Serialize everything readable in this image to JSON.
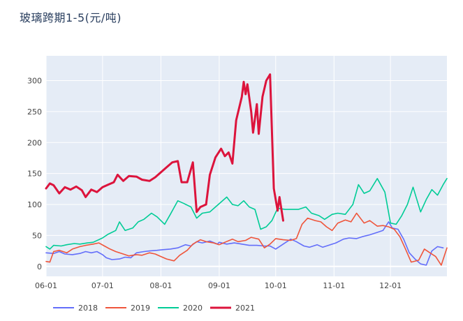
{
  "chart_data": {
    "type": "line",
    "title": "玻璃跨期1-5(元/吨)",
    "xlabel": "",
    "ylabel": "",
    "x_range": [
      "06-01",
      "12-31"
    ],
    "ylim": [
      -16,
      340
    ],
    "x_ticks": [
      "06-01",
      "07-01",
      "08-01",
      "09-01",
      "10-01",
      "11-01",
      "12-01"
    ],
    "y_ticks": [
      0,
      50,
      100,
      150,
      200,
      250,
      300
    ],
    "grid": true,
    "legend_position": "bottom-left",
    "series": [
      {
        "name": "2018",
        "color": "#636efa",
        "points": [
          [
            "06-01",
            22
          ],
          [
            "06-05",
            21
          ],
          [
            "06-08",
            24
          ],
          [
            "06-11",
            20
          ],
          [
            "06-15",
            19
          ],
          [
            "06-19",
            21
          ],
          [
            "06-22",
            24
          ],
          [
            "06-25",
            22
          ],
          [
            "06-28",
            24
          ],
          [
            "07-01",
            19
          ],
          [
            "07-03",
            14
          ],
          [
            "07-06",
            11
          ],
          [
            "07-10",
            12
          ],
          [
            "07-13",
            15
          ],
          [
            "07-16",
            14
          ],
          [
            "07-19",
            22
          ],
          [
            "07-23",
            24
          ],
          [
            "07-26",
            25
          ],
          [
            "07-30",
            26
          ],
          [
            "08-02",
            27
          ],
          [
            "08-06",
            28
          ],
          [
            "08-10",
            30
          ],
          [
            "08-14",
            35
          ],
          [
            "08-17",
            33
          ],
          [
            "08-20",
            40
          ],
          [
            "08-23",
            38
          ],
          [
            "08-27",
            41
          ],
          [
            "08-31",
            36
          ],
          [
            "09-01",
            39
          ],
          [
            "09-05",
            36
          ],
          [
            "09-09",
            38
          ],
          [
            "09-13",
            36
          ],
          [
            "09-17",
            34
          ],
          [
            "09-21",
            34
          ],
          [
            "09-25",
            33
          ],
          [
            "09-28",
            33
          ],
          [
            "10-01",
            28
          ],
          [
            "10-05",
            36
          ],
          [
            "10-09",
            44
          ],
          [
            "10-12",
            40
          ],
          [
            "10-16",
            33
          ],
          [
            "10-19",
            31
          ],
          [
            "10-23",
            35
          ],
          [
            "10-26",
            31
          ],
          [
            "10-30",
            35
          ],
          [
            "11-02",
            38
          ],
          [
            "11-06",
            44
          ],
          [
            "11-09",
            46
          ],
          [
            "11-13",
            45
          ],
          [
            "11-16",
            48
          ],
          [
            "11-20",
            51
          ],
          [
            "11-24",
            55
          ],
          [
            "11-27",
            58
          ],
          [
            "11-30",
            72
          ],
          [
            "12-02",
            62
          ],
          [
            "12-05",
            60
          ],
          [
            "12-08",
            44
          ],
          [
            "12-11",
            22
          ],
          [
            "12-14",
            12
          ],
          [
            "12-17",
            4
          ],
          [
            "12-20",
            2
          ],
          [
            "12-23",
            25
          ],
          [
            "12-26",
            32
          ],
          [
            "12-29",
            30
          ]
        ]
      },
      {
        "name": "2019",
        "color": "#ef553b",
        "points": [
          [
            "06-01",
            8
          ],
          [
            "06-03",
            7
          ],
          [
            "06-05",
            24
          ],
          [
            "06-08",
            26
          ],
          [
            "06-12",
            22
          ],
          [
            "06-15",
            28
          ],
          [
            "06-19",
            32
          ],
          [
            "06-22",
            34
          ],
          [
            "06-26",
            36
          ],
          [
            "06-29",
            38
          ],
          [
            "07-02",
            33
          ],
          [
            "07-05",
            28
          ],
          [
            "07-08",
            24
          ],
          [
            "07-12",
            20
          ],
          [
            "07-15",
            17
          ],
          [
            "07-19",
            19
          ],
          [
            "07-22",
            18
          ],
          [
            "07-26",
            22
          ],
          [
            "07-29",
            20
          ],
          [
            "08-01",
            16
          ],
          [
            "08-04",
            12
          ],
          [
            "08-08",
            9
          ],
          [
            "08-11",
            18
          ],
          [
            "08-15",
            26
          ],
          [
            "08-18",
            36
          ],
          [
            "08-22",
            43
          ],
          [
            "08-25",
            40
          ],
          [
            "08-29",
            38
          ],
          [
            "09-01",
            35
          ],
          [
            "09-04",
            39
          ],
          [
            "09-08",
            44
          ],
          [
            "09-11",
            40
          ],
          [
            "09-15",
            42
          ],
          [
            "09-18",
            47
          ],
          [
            "09-22",
            44
          ],
          [
            "09-25",
            30
          ],
          [
            "09-28",
            36
          ],
          [
            "10-01",
            45
          ],
          [
            "10-05",
            43
          ],
          [
            "10-09",
            42
          ],
          [
            "10-12",
            45
          ],
          [
            "10-15",
            68
          ],
          [
            "10-18",
            78
          ],
          [
            "10-22",
            74
          ],
          [
            "10-25",
            72
          ],
          [
            "10-28",
            64
          ],
          [
            "10-31",
            58
          ],
          [
            "11-03",
            70
          ],
          [
            "11-07",
            75
          ],
          [
            "11-10",
            72
          ],
          [
            "11-13",
            86
          ],
          [
            "11-17",
            70
          ],
          [
            "11-20",
            74
          ],
          [
            "11-24",
            65
          ],
          [
            "11-27",
            66
          ],
          [
            "11-30",
            64
          ],
          [
            "12-03",
            60
          ],
          [
            "12-06",
            48
          ],
          [
            "12-09",
            28
          ],
          [
            "12-12",
            7
          ],
          [
            "12-16",
            10
          ],
          [
            "12-19",
            28
          ],
          [
            "12-22",
            22
          ],
          [
            "12-25",
            16
          ],
          [
            "12-28",
            2
          ],
          [
            "12-31",
            30
          ]
        ]
      },
      {
        "name": "2020",
        "color": "#00cc96",
        "points": [
          [
            "06-01",
            32
          ],
          [
            "06-03",
            28
          ],
          [
            "06-05",
            34
          ],
          [
            "06-09",
            33
          ],
          [
            "06-12",
            35
          ],
          [
            "06-16",
            37
          ],
          [
            "06-19",
            36
          ],
          [
            "06-23",
            38
          ],
          [
            "06-26",
            39
          ],
          [
            "07-01",
            46
          ],
          [
            "07-04",
            52
          ],
          [
            "07-08",
            58
          ],
          [
            "07-10",
            72
          ],
          [
            "07-13",
            58
          ],
          [
            "07-17",
            62
          ],
          [
            "07-20",
            72
          ],
          [
            "07-23",
            76
          ],
          [
            "07-27",
            86
          ],
          [
            "07-30",
            80
          ],
          [
            "08-03",
            68
          ],
          [
            "08-06",
            84
          ],
          [
            "08-10",
            106
          ],
          [
            "08-13",
            102
          ],
          [
            "08-17",
            96
          ],
          [
            "08-20",
            78
          ],
          [
            "08-23",
            86
          ],
          [
            "08-27",
            88
          ],
          [
            "08-30",
            96
          ],
          [
            "09-02",
            104
          ],
          [
            "09-05",
            112
          ],
          [
            "09-08",
            100
          ],
          [
            "09-11",
            98
          ],
          [
            "09-14",
            106
          ],
          [
            "09-17",
            96
          ],
          [
            "09-20",
            92
          ],
          [
            "09-23",
            60
          ],
          [
            "09-26",
            64
          ],
          [
            "09-29",
            74
          ],
          [
            "10-02",
            94
          ],
          [
            "10-06",
            92
          ],
          [
            "10-09",
            92
          ],
          [
            "10-13",
            92
          ],
          [
            "10-17",
            96
          ],
          [
            "10-20",
            86
          ],
          [
            "10-24",
            82
          ],
          [
            "10-27",
            76
          ],
          [
            "10-31",
            84
          ],
          [
            "11-03",
            86
          ],
          [
            "11-07",
            84
          ],
          [
            "11-11",
            100
          ],
          [
            "11-14",
            132
          ],
          [
            "11-17",
            118
          ],
          [
            "11-20",
            122
          ],
          [
            "11-24",
            142
          ],
          [
            "11-28",
            120
          ],
          [
            "12-01",
            70
          ],
          [
            "12-04",
            68
          ],
          [
            "12-07",
            82
          ],
          [
            "12-10",
            100
          ],
          [
            "12-13",
            128
          ],
          [
            "12-17",
            88
          ],
          [
            "12-20",
            108
          ],
          [
            "12-23",
            124
          ],
          [
            "12-26",
            115
          ],
          [
            "12-29",
            132
          ],
          [
            "12-31",
            142
          ]
        ]
      },
      {
        "name": "2021",
        "color": "#dc143c",
        "points": [
          [
            "06-01",
            126
          ],
          [
            "06-03",
            134
          ],
          [
            "06-05",
            131
          ],
          [
            "06-08",
            118
          ],
          [
            "06-11",
            128
          ],
          [
            "06-14",
            124
          ],
          [
            "06-17",
            129
          ],
          [
            "06-20",
            123
          ],
          [
            "06-22",
            112
          ],
          [
            "06-25",
            124
          ],
          [
            "06-28",
            120
          ],
          [
            "07-01",
            128
          ],
          [
            "07-04",
            132
          ],
          [
            "07-07",
            136
          ],
          [
            "07-09",
            148
          ],
          [
            "07-12",
            138
          ],
          [
            "07-15",
            146
          ],
          [
            "07-19",
            145
          ],
          [
            "07-22",
            140
          ],
          [
            "07-26",
            138
          ],
          [
            "07-29",
            144
          ],
          [
            "08-01",
            152
          ],
          [
            "08-04",
            160
          ],
          [
            "08-07",
            168
          ],
          [
            "08-10",
            170
          ],
          [
            "08-12",
            136
          ],
          [
            "08-15",
            136
          ],
          [
            "08-18",
            168
          ],
          [
            "08-20",
            88
          ],
          [
            "08-22",
            96
          ],
          [
            "08-25",
            100
          ],
          [
            "08-27",
            148
          ],
          [
            "08-30",
            176
          ],
          [
            "09-02",
            190
          ],
          [
            "09-04",
            178
          ],
          [
            "09-06",
            184
          ],
          [
            "09-08",
            166
          ],
          [
            "09-10",
            236
          ],
          [
            "09-13",
            274
          ],
          [
            "09-14",
            298
          ],
          [
            "09-15",
            278
          ],
          [
            "09-16",
            294
          ],
          [
            "09-18",
            250
          ],
          [
            "09-19",
            216
          ],
          [
            "09-21",
            262
          ],
          [
            "09-22",
            214
          ],
          [
            "09-24",
            274
          ],
          [
            "09-26",
            300
          ],
          [
            "09-28",
            310
          ],
          [
            "09-30",
            126
          ],
          [
            "10-02",
            90
          ],
          [
            "10-03",
            112
          ],
          [
            "10-05",
            74
          ]
        ]
      }
    ]
  }
}
